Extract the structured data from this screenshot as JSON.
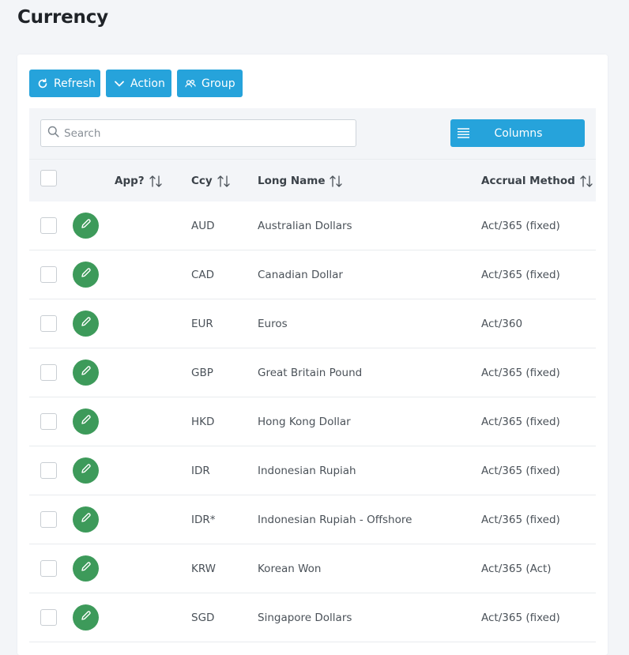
{
  "page": {
    "title": "Currency"
  },
  "toolbar": {
    "refresh_label": "Refresh",
    "action_label": "Action",
    "group_label": "Group"
  },
  "search": {
    "placeholder": "Search",
    "value": ""
  },
  "columns_button": {
    "label": "Columns"
  },
  "table": {
    "headers": {
      "approved": "App?",
      "ccy": "Ccy",
      "long_name": "Long Name",
      "accrual_method": "Accrual Method"
    },
    "rows": [
      {
        "ccy": "AUD",
        "long_name": "Australian Dollars",
        "accrual_method": "Act/365 (fixed)"
      },
      {
        "ccy": "CAD",
        "long_name": "Canadian Dollar",
        "accrual_method": "Act/365 (fixed)"
      },
      {
        "ccy": "EUR",
        "long_name": "Euros",
        "accrual_method": "Act/360"
      },
      {
        "ccy": "GBP",
        "long_name": "Great Britain Pound",
        "accrual_method": "Act/365 (fixed)"
      },
      {
        "ccy": "HKD",
        "long_name": "Hong Kong Dollar",
        "accrual_method": "Act/365 (fixed)"
      },
      {
        "ccy": "IDR",
        "long_name": "Indonesian Rupiah",
        "accrual_method": "Act/365 (fixed)"
      },
      {
        "ccy": "IDR*",
        "long_name": "Indonesian Rupiah - Offshore",
        "accrual_method": "Act/365 (fixed)"
      },
      {
        "ccy": "KRW",
        "long_name": "Korean Won",
        "accrual_method": "Act/365 (Act)"
      },
      {
        "ccy": "SGD",
        "long_name": "Singapore Dollars",
        "accrual_method": "Act/365 (fixed)"
      }
    ]
  },
  "icons": {
    "refresh": "refresh-icon",
    "action": "chevron-down-icon",
    "group": "users-icon",
    "search": "search-icon",
    "columns": "list-icon",
    "sort": "sort-icon",
    "edit": "pencil-icon"
  },
  "colors": {
    "primary_button": "#26a3db",
    "edit_button": "#3d9a5a",
    "background": "#f3f5f8"
  }
}
